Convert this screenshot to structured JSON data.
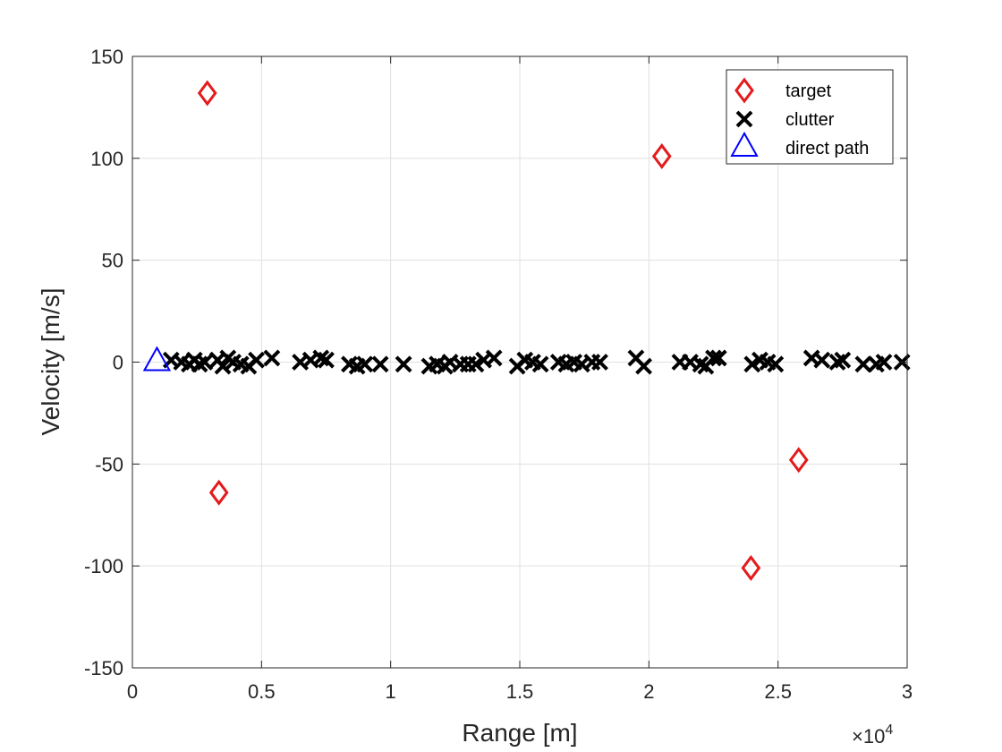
{
  "chart_data": {
    "type": "scatter",
    "xlabel": "Range [m]",
    "ylabel": "Velocity [m/s]",
    "x_scale_exponent_label": "×10",
    "x_scale_exponent_power": "4",
    "xlim": [
      0,
      30000
    ],
    "ylim": [
      -150,
      150
    ],
    "grid": true,
    "legend_position": "top-right",
    "xticks": [
      0,
      5000,
      10000,
      15000,
      20000,
      25000,
      30000
    ],
    "xtick_labels": [
      "0",
      "0.5",
      "1",
      "1.5",
      "2",
      "2.5",
      "3"
    ],
    "yticks": [
      150,
      100,
      50,
      0,
      -50,
      -100,
      -150
    ],
    "ytick_labels": [
      "150",
      "100",
      "50",
      "0",
      "-50",
      "-100",
      "-150"
    ],
    "series": [
      {
        "name": "target",
        "marker": "diamond",
        "color": "#e41a1c",
        "points": [
          [
            2900,
            132
          ],
          [
            3350,
            -64
          ],
          [
            20500,
            101
          ],
          [
            23950,
            -101
          ],
          [
            25800,
            -48
          ]
        ]
      },
      {
        "name": "clutter",
        "marker": "x",
        "color": "#000000",
        "points": [
          [
            1500,
            1
          ],
          [
            1900,
            0
          ],
          [
            2200,
            -1
          ],
          [
            2400,
            1
          ],
          [
            2600,
            -1
          ],
          [
            2800,
            0
          ],
          [
            3300,
            1
          ],
          [
            3500,
            -2
          ],
          [
            3700,
            2
          ],
          [
            3900,
            0
          ],
          [
            4200,
            -1
          ],
          [
            4500,
            -2
          ],
          [
            4800,
            1
          ],
          [
            5400,
            2
          ],
          [
            6500,
            0
          ],
          [
            6900,
            1
          ],
          [
            7300,
            2
          ],
          [
            7500,
            1
          ],
          [
            8400,
            -1
          ],
          [
            8700,
            -2
          ],
          [
            9000,
            -1
          ],
          [
            9600,
            -1
          ],
          [
            10500,
            -1
          ],
          [
            11500,
            -2
          ],
          [
            11800,
            -1
          ],
          [
            12100,
            -2
          ],
          [
            12300,
            0
          ],
          [
            12700,
            -1
          ],
          [
            13000,
            -1
          ],
          [
            13300,
            -1
          ],
          [
            13600,
            1
          ],
          [
            14000,
            2
          ],
          [
            14900,
            -2
          ],
          [
            15200,
            1
          ],
          [
            15500,
            0
          ],
          [
            15800,
            -1
          ],
          [
            16500,
            0
          ],
          [
            16800,
            -1
          ],
          [
            17100,
            0
          ],
          [
            17400,
            -1
          ],
          [
            17800,
            0
          ],
          [
            18100,
            0
          ],
          [
            19500,
            2
          ],
          [
            19800,
            -2
          ],
          [
            21200,
            0
          ],
          [
            21600,
            0
          ],
          [
            22000,
            -1
          ],
          [
            22200,
            -2
          ],
          [
            22500,
            2
          ],
          [
            22700,
            2
          ],
          [
            24000,
            -1
          ],
          [
            24300,
            1
          ],
          [
            24600,
            0
          ],
          [
            24900,
            -1
          ],
          [
            26300,
            2
          ],
          [
            26700,
            1
          ],
          [
            27300,
            0
          ],
          [
            27500,
            1
          ],
          [
            28300,
            -1
          ],
          [
            28800,
            -1
          ],
          [
            29100,
            0
          ],
          [
            29800,
            0
          ]
        ]
      },
      {
        "name": "direct path",
        "marker": "triangle",
        "color": "#0000ff",
        "points": [
          [
            950,
            0
          ]
        ]
      }
    ]
  }
}
